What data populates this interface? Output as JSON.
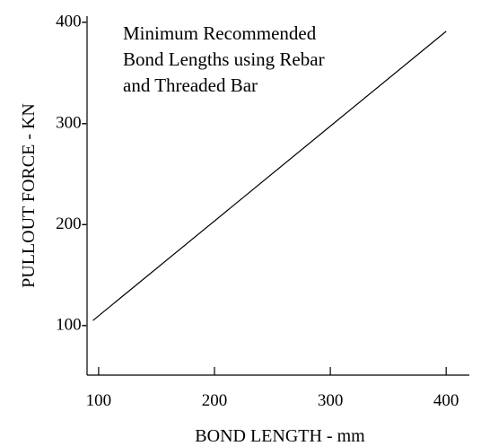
{
  "chart_data": {
    "type": "line",
    "title_lines": [
      "Minimum Recommended",
      "Bond Lengths using Rebar",
      "and Threaded Bar"
    ],
    "xlabel": "BOND LENGTH - mm",
    "ylabel": "PULLOUT FORCE - KN",
    "xlim": [
      90,
      420
    ],
    "ylim": [
      50,
      405
    ],
    "x_ticks": [
      100,
      200,
      300,
      400
    ],
    "y_ticks": [
      100,
      200,
      300,
      400
    ],
    "x_tick_labels": [
      "100",
      "200",
      "300",
      "400"
    ],
    "y_tick_labels": [
      "100-",
      "200-",
      "300-",
      "400-"
    ],
    "grid": false,
    "series": [
      {
        "x": [
          95,
          400
        ],
        "y": [
          104,
          390
        ]
      }
    ],
    "colors": {
      "line": "#000000",
      "axis": "#000000",
      "background": "#ffffff"
    }
  }
}
